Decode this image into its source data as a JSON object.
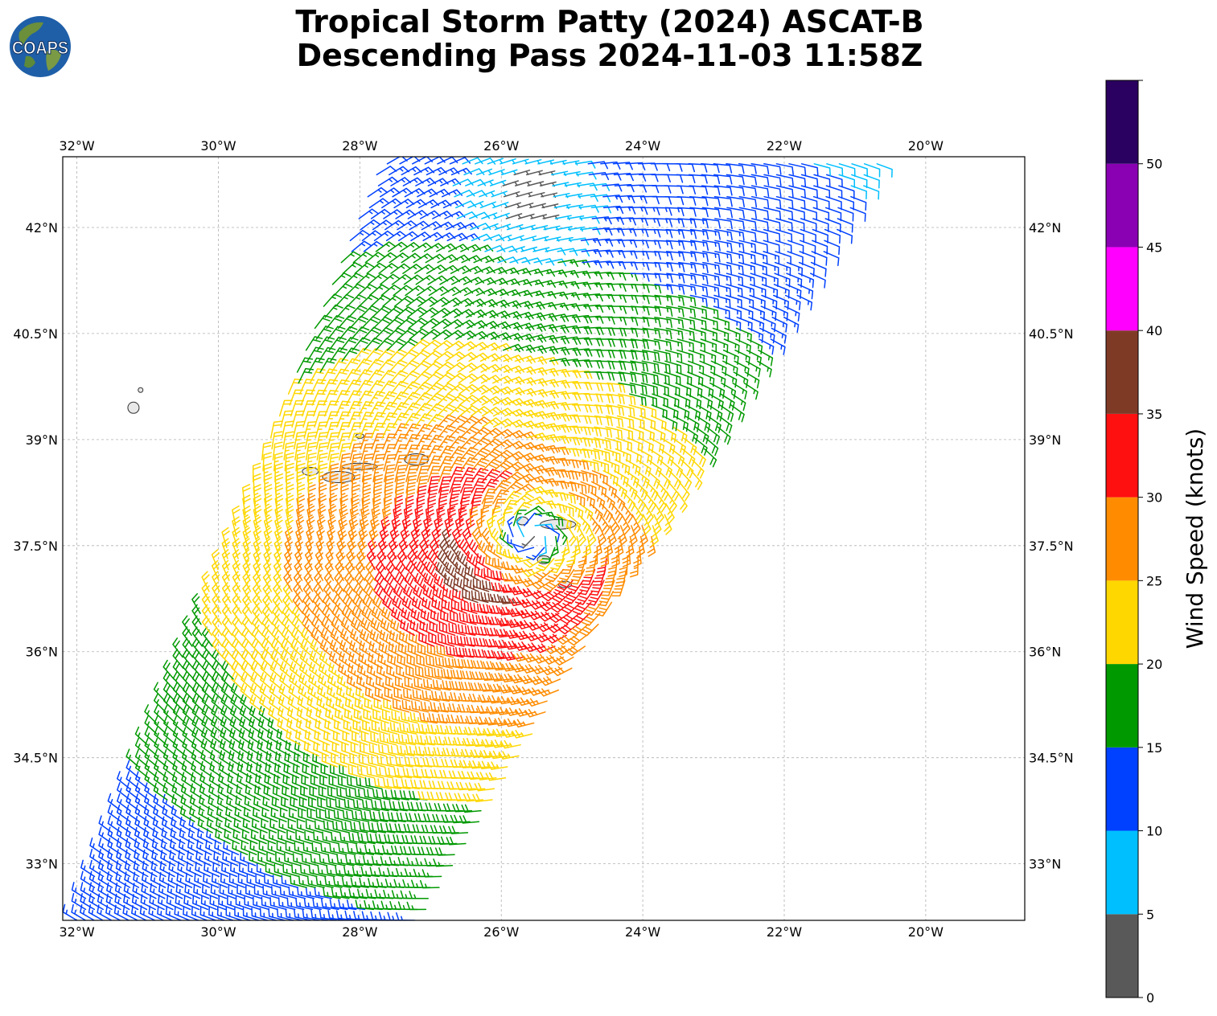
{
  "title": {
    "line1": "Tropical Storm Patty (2024) ASCAT-B",
    "line2": "Descending Pass 2024-11-03 11:58Z"
  },
  "logo": {
    "text": "COAPS",
    "icon": "globe-logo"
  },
  "map": {
    "lon_range": [
      -32.2,
      -18.6
    ],
    "lat_range": [
      32.2,
      43.0
    ],
    "lon_ticks": [
      "32°W",
      "30°W",
      "28°W",
      "26°W",
      "24°W",
      "22°W",
      "20°W"
    ],
    "lon_tick_values": [
      -32,
      -30,
      -28,
      -26,
      -24,
      -22,
      -20
    ],
    "lat_ticks": [
      "33°N",
      "34.5°N",
      "36°N",
      "37.5°N",
      "39°N",
      "40.5°N",
      "42°N"
    ],
    "lat_tick_values": [
      33,
      34.5,
      36,
      37.5,
      39,
      40.5,
      42
    ],
    "grid": true,
    "storm_center": {
      "lon": -25.55,
      "lat": 37.65
    },
    "swath_corners": [
      [
        -32.0,
        32.2
      ],
      [
        -27.1,
        32.2
      ],
      [
        -20.6,
        42.9
      ],
      [
        -27.7,
        42.9
      ]
    ]
  },
  "colorbar": {
    "label": "Wind Speed (knots)",
    "ticks": [
      "0",
      "5",
      "10",
      "15",
      "20",
      "25",
      "30",
      "35",
      "40",
      "45",
      "50"
    ],
    "bounds": [
      0,
      5,
      10,
      15,
      20,
      25,
      30,
      35,
      40,
      45,
      50,
      55
    ],
    "colors": [
      "#595959",
      "#00bfff",
      "#0040ff",
      "#009900",
      "#ffd700",
      "#ff8c00",
      "#ff1010",
      "#7f3a26",
      "#ff00ff",
      "#8a00b3",
      "#2a0060"
    ]
  },
  "chart_data": {
    "type": "wind-barb map",
    "title": "Tropical Storm Patty (2024) ASCAT-B Descending Pass 2024-11-03 11:58Z",
    "units": "knots",
    "xlim": [
      -32.2,
      -18.6
    ],
    "ylim": [
      32.2,
      43.0
    ],
    "center": {
      "lon": -25.55,
      "lat": 37.65
    },
    "max_wind_kt": 33,
    "max_wind_quadrant": "southwest",
    "radial_speed_profile_kt": [
      {
        "r_deg": 0.4,
        "kt": 22
      },
      {
        "r_deg": 0.9,
        "kt": 32
      },
      {
        "r_deg": 1.4,
        "kt": 28
      },
      {
        "r_deg": 2.5,
        "kt": 23
      },
      {
        "r_deg": 4.0,
        "kt": 17
      },
      {
        "r_deg": 6.0,
        "kt": 12
      }
    ],
    "north_calm_region": {
      "lon": -25.7,
      "lat": 42.4,
      "kt": 2
    }
  }
}
